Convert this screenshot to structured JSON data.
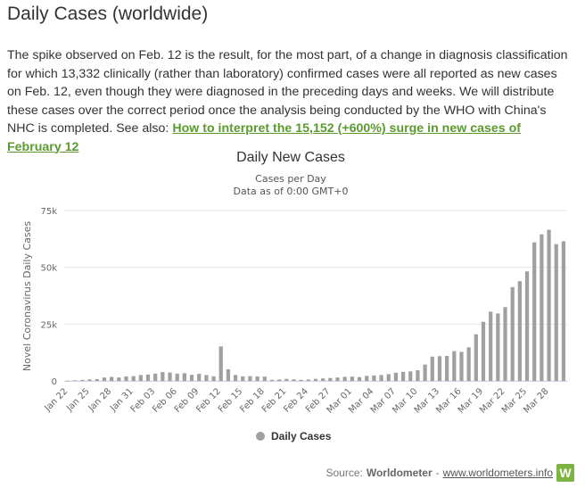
{
  "page": {
    "title": "Daily Cases (worldwide)",
    "intro_text": "The spike observed on Feb. 12 is the result, for the most part, of a change in diagnosis classification for which 13,332 clinically (rather than laboratory) confirmed cases were all reported as new cases on Feb. 12, even though they were diagnosed in the preceding days and weeks. We will distribute these cases over the correct period once the analysis being conducted by the WHO with China's NHC is completed. See also:",
    "link_text": "How to interpret the 15,152 (+600%) surge in new cases of February 12"
  },
  "credit": {
    "prefix": "Source:",
    "source_name": "Worldometer",
    "separator": "-",
    "url_text": "www.worldometers.info",
    "logo_letter": "W"
  },
  "colors": {
    "bar": "#a0a0a0",
    "link": "#5b9a2e",
    "logo": "#7cb342"
  },
  "chart_data": {
    "type": "bar",
    "title": "Daily New Cases",
    "subtitle_lines": [
      "Cases per Day",
      "Data as of 0:00 GMT+0"
    ],
    "ylabel": "Novel Coronavirus Daily Cases",
    "xlabel": "",
    "ylim": [
      0,
      75000
    ],
    "y_ticks": [
      0,
      25000,
      50000,
      75000
    ],
    "y_tick_labels": [
      "0",
      "25k",
      "50k",
      "75k"
    ],
    "grid": true,
    "legend_position": "bottom-center",
    "categories": [
      "Jan 22",
      "Jan 23",
      "Jan 24",
      "Jan 25",
      "Jan 26",
      "Jan 27",
      "Jan 28",
      "Jan 29",
      "Jan 30",
      "Jan 31",
      "Feb 01",
      "Feb 02",
      "Feb 03",
      "Feb 04",
      "Feb 05",
      "Feb 06",
      "Feb 07",
      "Feb 08",
      "Feb 09",
      "Feb 10",
      "Feb 11",
      "Feb 12",
      "Feb 13",
      "Feb 14",
      "Feb 15",
      "Feb 16",
      "Feb 17",
      "Feb 18",
      "Feb 19",
      "Feb 20",
      "Feb 21",
      "Feb 22",
      "Feb 23",
      "Feb 24",
      "Feb 25",
      "Feb 26",
      "Feb 27",
      "Feb 28",
      "Feb 29",
      "Mar 01",
      "Mar 02",
      "Mar 03",
      "Mar 04",
      "Mar 05",
      "Mar 06",
      "Mar 07",
      "Mar 08",
      "Mar 09",
      "Mar 10",
      "Mar 11",
      "Mar 12",
      "Mar 13",
      "Mar 14",
      "Mar 15",
      "Mar 16",
      "Mar 17",
      "Mar 18",
      "Mar 19",
      "Mar 20",
      "Mar 21",
      "Mar 22",
      "Mar 23",
      "Mar 24",
      "Mar 25",
      "Mar 26",
      "Mar 27",
      "Mar 28",
      "Mar 29",
      "Mar 30"
    ],
    "x_tick_labels": [
      "Jan 22",
      "Jan 25",
      "Jan 28",
      "Jan 31",
      "Feb 03",
      "Feb 06",
      "Feb 09",
      "Feb 12",
      "Feb 15",
      "Feb 18",
      "Feb 21",
      "Feb 24",
      "Feb 27",
      "Mar 01",
      "Mar 04",
      "Mar 07",
      "Mar 10",
      "Mar 13",
      "Mar 16",
      "Mar 19",
      "Mar 22",
      "Mar 25",
      "Mar 28"
    ],
    "series": [
      {
        "name": "Daily Cases",
        "values": [
          100,
          250,
          450,
          680,
          800,
          1500,
          1750,
          1500,
          2000,
          2100,
          2600,
          2800,
          3200,
          3900,
          3700,
          3200,
          3400,
          2700,
          3100,
          2600,
          2000,
          15200,
          5100,
          2600,
          2000,
          2100,
          2000,
          1900,
          500,
          600,
          900,
          700,
          500,
          600,
          900,
          1100,
          1300,
          1500,
          1800,
          1900,
          1700,
          2200,
          2400,
          2600,
          3000,
          3600,
          4000,
          4200,
          4700,
          7200,
          10700,
          10900,
          11000,
          13100,
          12800,
          14800,
          20500,
          26000,
          30500,
          29700,
          32500,
          41300,
          43900,
          48200,
          61000,
          64500,
          66500,
          60200,
          61500
        ]
      }
    ]
  }
}
